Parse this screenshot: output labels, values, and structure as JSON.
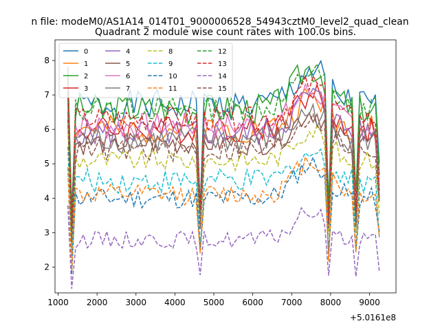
{
  "figure": {
    "suptitle": "n file: modeM0/AS1A14_014T01_9000006528_54943cztM0_level2_quad_clean",
    "title": "Quadrant 2 module wise count rates with 100.0s bins.",
    "x_offset_label": "+5.0161e8"
  },
  "chart_data": {
    "type": "line",
    "title": "Quadrant 2 module wise count rates with 100.0s bins.",
    "xlabel": "",
    "ylabel": "",
    "xlim": [
      920,
      9680
    ],
    "ylim": [
      1.25,
      8.6
    ],
    "x_ticks": [
      1000,
      2000,
      3000,
      4000,
      5000,
      6000,
      7000,
      8000,
      9000
    ],
    "y_ticks": [
      2,
      3,
      4,
      5,
      6,
      7,
      8
    ],
    "x_tick_labels": [
      "1000",
      "2000",
      "3000",
      "4000",
      "5000",
      "6000",
      "7000",
      "8000",
      "9000"
    ],
    "y_tick_labels": [
      "2",
      "3",
      "4",
      "5",
      "6",
      "7",
      "8"
    ],
    "x_offset": "+5.0161e8",
    "x_start": 1250,
    "x_step": 100,
    "legend_position": "upper-left",
    "grid": false,
    "series": [
      {
        "name": "0",
        "color": "#1f77b4",
        "dash": "solid",
        "base": 6.7,
        "amp": 0.45,
        "hump": 1.0,
        "seed": 1
      },
      {
        "name": "1",
        "color": "#ff7f0e",
        "dash": "solid",
        "base": 6.0,
        "amp": 0.4,
        "hump": 0.9,
        "seed": 2
      },
      {
        "name": "2",
        "color": "#2ca02c",
        "dash": "solid",
        "base": 6.6,
        "amp": 0.45,
        "hump": 1.2,
        "seed": 3
      },
      {
        "name": "3",
        "color": "#d62728",
        "dash": "solid",
        "base": 6.0,
        "amp": 0.4,
        "hump": 1.0,
        "seed": 4
      },
      {
        "name": "4",
        "color": "#9467bd",
        "dash": "solid",
        "base": 5.9,
        "amp": 0.4,
        "hump": 1.1,
        "seed": 5
      },
      {
        "name": "5",
        "color": "#8c564b",
        "dash": "solid",
        "base": 5.6,
        "amp": 0.35,
        "hump": 0.9,
        "seed": 6
      },
      {
        "name": "6",
        "color": "#e377c2",
        "dash": "solid",
        "base": 6.1,
        "amp": 0.4,
        "hump": 1.0,
        "seed": 7
      },
      {
        "name": "7",
        "color": "#7f7f7f",
        "dash": "solid",
        "base": 5.7,
        "amp": 0.4,
        "hump": 0.8,
        "seed": 8
      },
      {
        "name": "8",
        "color": "#bcbd22",
        "dash": "dashed",
        "base": 5.1,
        "amp": 0.3,
        "hump": 0.9,
        "seed": 9
      },
      {
        "name": "9",
        "color": "#17becf",
        "dash": "dashed",
        "base": 4.5,
        "amp": 0.35,
        "hump": 0.8,
        "seed": 10
      },
      {
        "name": "10",
        "color": "#1f77b4",
        "dash": "dashed",
        "base": 4.0,
        "amp": 0.3,
        "hump": 1.0,
        "seed": 11
      },
      {
        "name": "11",
        "color": "#ff7f0e",
        "dash": "dashed",
        "base": 4.1,
        "amp": 0.3,
        "hump": 1.0,
        "seed": 12
      },
      {
        "name": "12",
        "color": "#2ca02c",
        "dash": "dashed",
        "base": 6.6,
        "amp": 0.35,
        "hump": 1.1,
        "seed": 13
      },
      {
        "name": "13",
        "color": "#d62728",
        "dash": "dashed",
        "base": 6.3,
        "amp": 0.35,
        "hump": 1.0,
        "seed": 14
      },
      {
        "name": "14",
        "color": "#9467bd",
        "dash": "dashed",
        "base": 2.8,
        "amp": 0.25,
        "hump": 0.8,
        "seed": 15
      },
      {
        "name": "15",
        "color": "#8c564b",
        "dash": "dashed",
        "base": 5.4,
        "amp": 0.35,
        "hump": 1.0,
        "seed": 16
      }
    ],
    "dips": [
      {
        "x": 1350,
        "depth": 0.5
      },
      {
        "x": 4650,
        "depth": 0.42
      },
      {
        "x": 7950,
        "depth": 0.5
      },
      {
        "x": 8650,
        "depth": 0.4
      },
      {
        "x": 9250,
        "depth": 0.3
      }
    ],
    "x_end": 9250
  }
}
